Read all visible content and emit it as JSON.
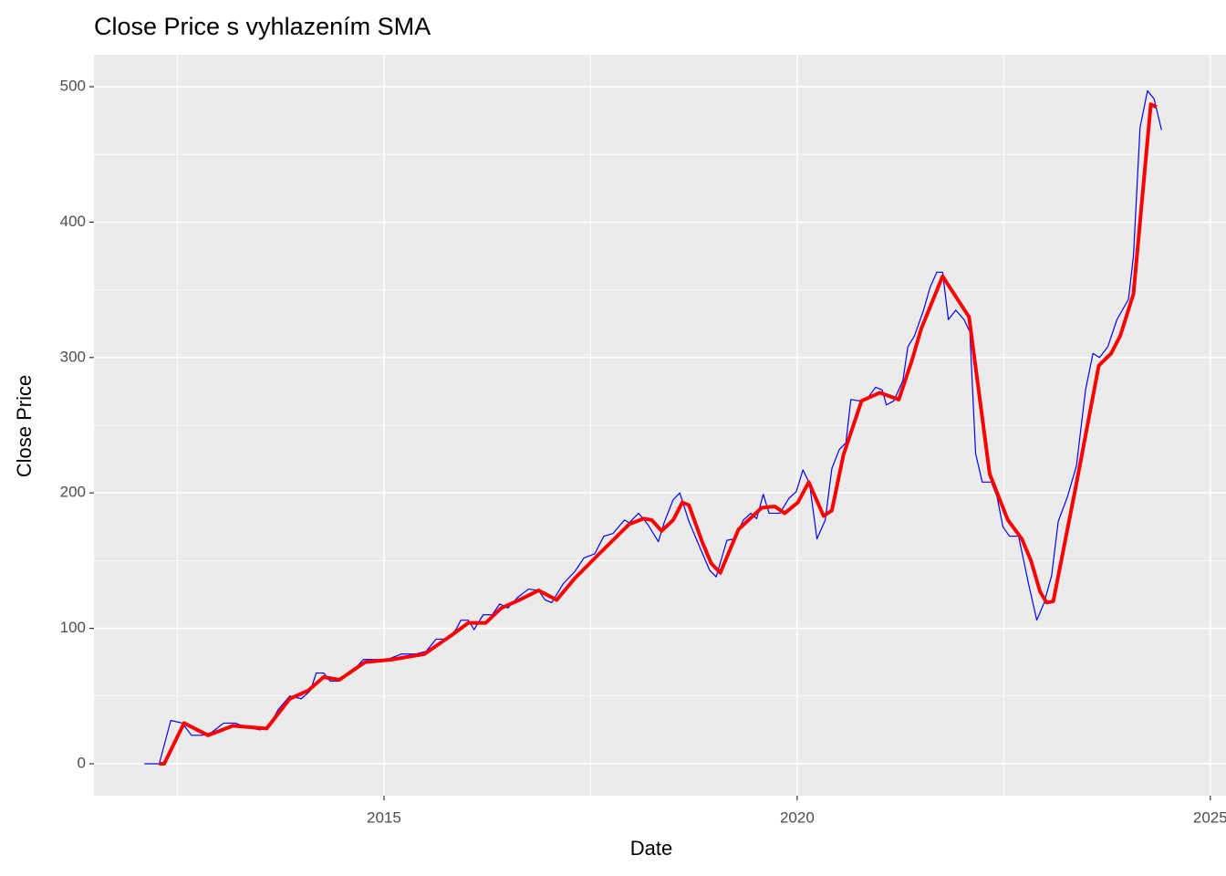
{
  "chart_data": {
    "type": "line",
    "title": "Close Price s vyhlazením SMA",
    "x_label": "Date",
    "y_label": "Close Price",
    "xlim": [
      2011.49,
      2025.19
    ],
    "ylim": [
      -23.6,
      523.6
    ],
    "xticks": [
      2015,
      2020,
      2025
    ],
    "yticks": [
      0,
      100,
      200,
      300,
      400,
      500
    ],
    "grid": true,
    "minor_grid": true,
    "background": "#ebebeb",
    "series": [
      {
        "color": "#0000ff",
        "width": 1.2,
        "x": [
          2012.1,
          2012.28,
          2012.42,
          2012.56,
          2012.67,
          2012.8,
          2012.91,
          2013.06,
          2013.2,
          2013.33,
          2013.5,
          2013.61,
          2013.72,
          2013.86,
          2014.0,
          2014.11,
          2014.18,
          2014.27,
          2014.35,
          2014.46,
          2014.6,
          2014.75,
          2014.88,
          2015.04,
          2015.21,
          2015.38,
          2015.51,
          2015.63,
          2015.76,
          2015.87,
          2015.93,
          2016.02,
          2016.09,
          2016.2,
          2016.31,
          2016.4,
          2016.5,
          2016.62,
          2016.75,
          2016.87,
          2016.95,
          2017.03,
          2017.17,
          2017.31,
          2017.42,
          2017.55,
          2017.66,
          2017.77,
          2017.91,
          2017.97,
          2018.08,
          2018.19,
          2018.32,
          2018.39,
          2018.5,
          2018.58,
          2018.69,
          2018.8,
          2018.94,
          2019.02,
          2019.15,
          2019.24,
          2019.35,
          2019.44,
          2019.51,
          2019.59,
          2019.66,
          2019.79,
          2019.9,
          2019.99,
          2020.07,
          2020.15,
          2020.24,
          2020.34,
          2020.42,
          2020.51,
          2020.59,
          2020.65,
          2020.75,
          2020.84,
          2020.95,
          2021.03,
          2021.08,
          2021.17,
          2021.28,
          2021.34,
          2021.42,
          2021.53,
          2021.61,
          2021.69,
          2021.76,
          2021.83,
          2021.92,
          2022.02,
          2022.09,
          2022.16,
          2022.24,
          2022.35,
          2022.42,
          2022.49,
          2022.57,
          2022.68,
          2022.8,
          2022.9,
          2022.99,
          2023.08,
          2023.16,
          2023.27,
          2023.38,
          2023.49,
          2023.58,
          2023.66,
          2023.76,
          2023.87,
          2024.01,
          2024.07,
          2024.15,
          2024.24,
          2024.32,
          2024.41
        ],
        "values": [
          0,
          0,
          32,
          30,
          21,
          21,
          23,
          30,
          30,
          27,
          25,
          28,
          40,
          50,
          48,
          54,
          67,
          67,
          61,
          61,
          67,
          77,
          77,
          77,
          81,
          81,
          83,
          92,
          92,
          99,
          106,
          106,
          99,
          110,
          110,
          118,
          115,
          123,
          129,
          128,
          121,
          119,
          133,
          142,
          152,
          155,
          168,
          170,
          180,
          178,
          185,
          177,
          164,
          178,
          195,
          200,
          179,
          163,
          143,
          138,
          165,
          166,
          180,
          185,
          181,
          199,
          185,
          185,
          196,
          201,
          217,
          207,
          166,
          180,
          218,
          232,
          237,
          269,
          268,
          269,
          278,
          276,
          265,
          268,
          283,
          308,
          316,
          335,
          352,
          363,
          363,
          328,
          335,
          328,
          319,
          229,
          208,
          208,
          197,
          175,
          168,
          168,
          133,
          106,
          119,
          139,
          179,
          197,
          220,
          276,
          303,
          300,
          308,
          328,
          343,
          375,
          470,
          497,
          491,
          468
        ]
      },
      {
        "color": "#ff0000",
        "width": 4,
        "x": [
          2012.28,
          2012.34,
          2012.58,
          2012.87,
          2013.17,
          2013.58,
          2013.86,
          2014.08,
          2014.27,
          2014.46,
          2014.77,
          2015.1,
          2015.49,
          2015.82,
          2016.02,
          2016.23,
          2016.42,
          2016.64,
          2016.87,
          2017.09,
          2017.31,
          2017.62,
          2017.97,
          2018.14,
          2018.24,
          2018.36,
          2018.5,
          2018.61,
          2018.69,
          2018.85,
          2018.96,
          2019.07,
          2019.29,
          2019.57,
          2019.73,
          2019.85,
          2020.01,
          2020.14,
          2020.32,
          2020.42,
          2020.56,
          2020.78,
          2021.0,
          2021.23,
          2021.39,
          2021.5,
          2021.76,
          2021.92,
          2022.08,
          2022.33,
          2022.55,
          2022.72,
          2022.83,
          2022.94,
          2023.02,
          2023.1,
          2023.38,
          2023.65,
          2023.8,
          2023.91,
          2024.07,
          2024.28,
          2024.35
        ],
        "values": [
          0,
          0,
          30,
          21,
          28,
          26,
          48,
          54,
          64,
          62,
          75,
          77,
          81,
          95,
          104,
          104,
          115,
          121,
          128,
          121,
          137,
          156,
          177,
          181,
          180,
          172,
          180,
          193,
          191,
          164,
          148,
          141,
          173,
          189,
          190,
          185,
          193,
          208,
          183,
          187,
          228,
          268,
          274,
          269,
          298,
          321,
          360,
          345,
          330,
          214,
          180,
          166,
          150,
          127,
          119,
          120,
          207,
          294,
          303,
          316,
          347,
          487,
          485
        ]
      }
    ]
  }
}
